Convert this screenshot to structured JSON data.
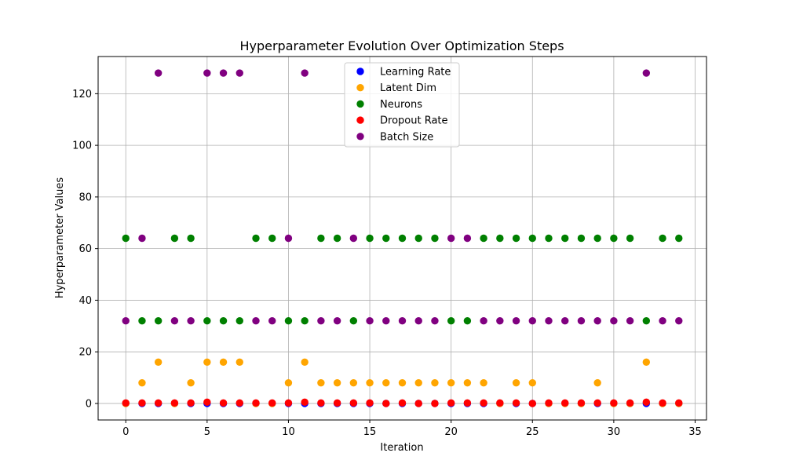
{
  "chart_data": {
    "type": "scatter",
    "title": "Hyperparameter Evolution Over Optimization Steps",
    "xlabel": "Iteration",
    "ylabel": "Hyperparameter Values",
    "xlim": [
      -1.7,
      35.7
    ],
    "ylim": [
      -6.4,
      134.4
    ],
    "xticks": [
      0,
      5,
      10,
      15,
      20,
      25,
      30,
      35
    ],
    "yticks": [
      0,
      20,
      40,
      60,
      80,
      100,
      120
    ],
    "grid": true,
    "legend_position": "top-center",
    "x": [
      0,
      1,
      2,
      3,
      4,
      5,
      6,
      7,
      8,
      9,
      10,
      11,
      12,
      13,
      14,
      15,
      16,
      17,
      18,
      19,
      20,
      21,
      22,
      23,
      24,
      25,
      26,
      27,
      28,
      29,
      30,
      31,
      32,
      33,
      34
    ],
    "series": [
      {
        "name": "Learning Rate",
        "color": "#0000ff",
        "values": [
          0.001,
          0.001,
          0.001,
          0.001,
          0.001,
          0.001,
          0.001,
          0.001,
          0.001,
          0.001,
          0.001,
          0.001,
          0.001,
          0.001,
          0.001,
          0.001,
          0.001,
          0.001,
          0.001,
          0.001,
          0.001,
          0.001,
          0.001,
          0.001,
          0.001,
          0.001,
          0.001,
          0.001,
          0.001,
          0.001,
          0.001,
          0.001,
          0.001,
          0.001,
          0.001
        ]
      },
      {
        "name": "Latent Dim",
        "color": "#ffa500",
        "values": [
          0,
          8,
          16,
          0,
          8,
          16,
          16,
          16,
          0,
          0,
          8,
          16,
          8,
          8,
          8,
          8,
          8,
          8,
          8,
          8,
          8,
          8,
          8,
          0,
          8,
          8,
          0,
          0,
          0,
          8,
          0,
          0,
          16,
          0,
          0
        ]
      },
      {
        "name": "Neurons",
        "color": "#008000",
        "values": [
          64,
          32,
          32,
          64,
          64,
          32,
          32,
          32,
          64,
          64,
          32,
          32,
          64,
          64,
          32,
          64,
          64,
          64,
          64,
          64,
          32,
          32,
          64,
          64,
          64,
          64,
          64,
          64,
          64,
          64,
          64,
          64,
          32,
          64,
          64
        ]
      },
      {
        "name": "Dropout Rate",
        "color": "#ff0000",
        "values": [
          0.2,
          0.2,
          0.2,
          0.2,
          0.2,
          0.5,
          0.2,
          0.2,
          0.2,
          0.2,
          0.2,
          0.5,
          0.2,
          0.2,
          0.2,
          0.2,
          0.0,
          0.2,
          0.0,
          0.0,
          0.2,
          0.2,
          0.2,
          0.2,
          0.2,
          0.0,
          0.2,
          0.2,
          0.2,
          0.2,
          0.2,
          0.2,
          0.5,
          0.2,
          0.2
        ]
      },
      {
        "name": "Batch Size",
        "color": "#800080",
        "values": [
          32,
          64,
          128,
          32,
          32,
          128,
          128,
          128,
          32,
          32,
          64,
          128,
          32,
          32,
          64,
          32,
          32,
          32,
          32,
          32,
          64,
          64,
          32,
          32,
          32,
          32,
          32,
          32,
          32,
          32,
          32,
          32,
          128,
          32,
          32
        ]
      }
    ]
  }
}
